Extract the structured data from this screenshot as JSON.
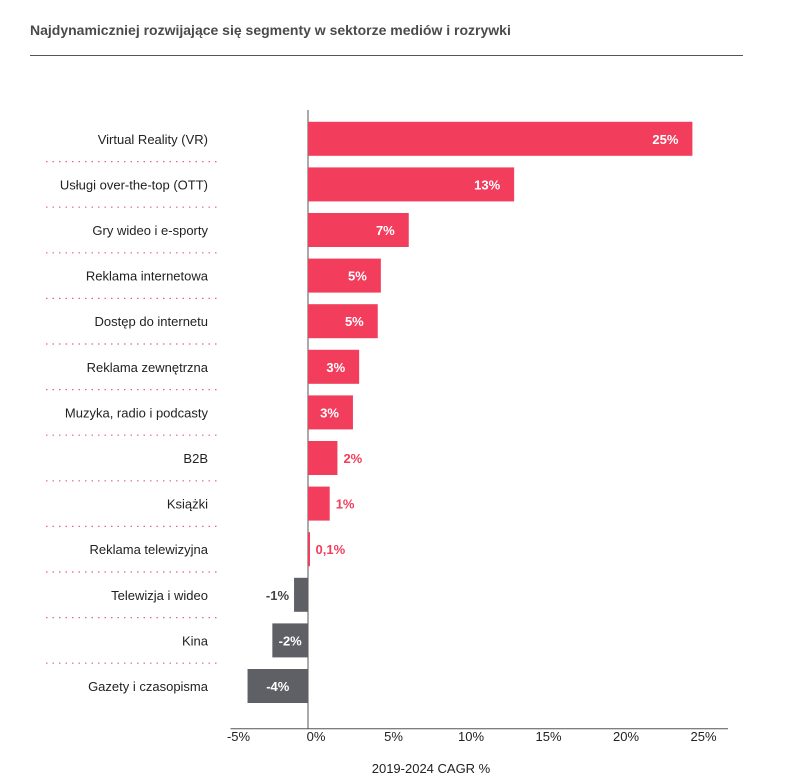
{
  "chart_data": {
    "type": "bar",
    "orientation": "horizontal",
    "title": "Najdynamiczniej rozwijające się segmenty w sektorze mediów i rozrywki",
    "xlabel": "2019-2024 CAGR %",
    "ylabel": "",
    "xlim": [
      -5,
      25
    ],
    "ticks": [
      -5,
      0,
      5,
      10,
      15,
      20,
      25
    ],
    "tick_labels": [
      "-5%",
      "0%",
      "5%",
      "10%",
      "15%",
      "20%",
      "25%"
    ],
    "categories": [
      "Virtual Reality (VR)",
      "Usługi over-the-top (OTT)",
      "Gry wideo i e-sporty",
      "Reklama internetowa",
      "Dostęp do internetu",
      "Reklama zewnętrzna",
      "Muzyka, radio i podcasty",
      "B2B",
      "Książki",
      "Reklama telewizyjna",
      "Telewizja i wideo",
      "Kina",
      "Gazety i czasopisma"
    ],
    "values": [
      24.8,
      13.3,
      6.5,
      4.7,
      4.5,
      3.3,
      2.9,
      1.9,
      1.4,
      0.1,
      -0.9,
      -2.3,
      -3.9
    ],
    "value_labels": [
      "25%",
      "13%",
      "7%",
      "5%",
      "5%",
      "3%",
      "3%",
      "2%",
      "1%",
      "0,1%",
      "-1%",
      "-2%",
      "-4%"
    ],
    "positive_color": "#f23d5c",
    "negative_color": "#5f5f66",
    "separator_color": "#e8647a"
  }
}
